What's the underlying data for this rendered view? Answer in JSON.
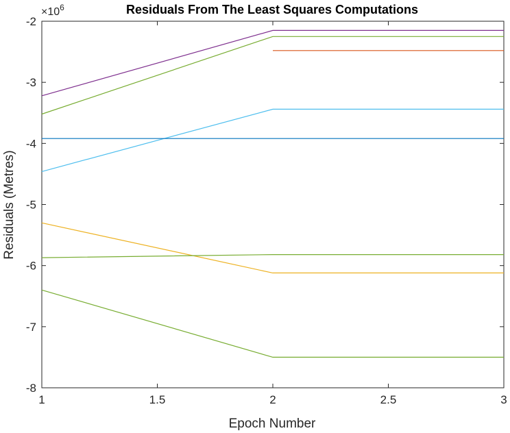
{
  "chart_data": {
    "type": "line",
    "title": "Residuals From The Least Squares Computations",
    "xlabel": "Epoch Number",
    "ylabel": "Residuals (Metres)",
    "y_exponent_base": "×10",
    "y_exponent_power": "6",
    "xlim": [
      1,
      3
    ],
    "ylim": [
      -8,
      -2
    ],
    "xticks": [
      "1",
      "1.5",
      "2",
      "2.5",
      "3"
    ],
    "yticks": [
      "-2",
      "-3",
      "-4",
      "-5",
      "-6",
      "-7",
      "-8"
    ],
    "grid": false,
    "x": [
      1,
      2,
      3
    ],
    "series": [
      {
        "color": "#7E2F8E",
        "values": [
          -3.22,
          -2.15,
          -2.15
        ]
      },
      {
        "color": "#77AC30",
        "values": [
          -3.52,
          -2.25,
          -2.25
        ]
      },
      {
        "color": "#D95319",
        "values": [
          null,
          -2.48,
          -2.48
        ]
      },
      {
        "color": "#4DBEEE",
        "values": [
          -4.46,
          -3.44,
          -3.44
        ]
      },
      {
        "color": "#0072BD",
        "values": [
          -3.92,
          -3.92,
          -3.92
        ]
      },
      {
        "color": "#EDB120",
        "values": [
          -5.3,
          -6.12,
          -6.12
        ]
      },
      {
        "color": "#77AC30",
        "values": [
          -5.87,
          -5.82,
          -5.82
        ]
      },
      {
        "color": "#77AC30",
        "values": [
          -6.4,
          -7.5,
          -7.5
        ]
      }
    ]
  }
}
